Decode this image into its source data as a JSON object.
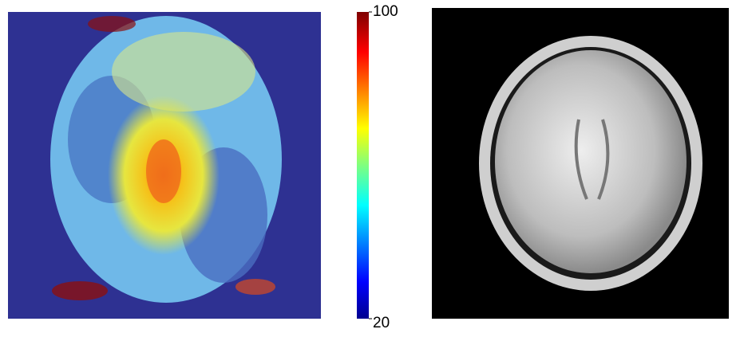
{
  "chart_data": {
    "type": "heatmap",
    "colorbar": {
      "lim": [
        20,
        100
      ],
      "ticks": [
        20,
        100
      ],
      "colormap": "jet"
    }
  }
}
